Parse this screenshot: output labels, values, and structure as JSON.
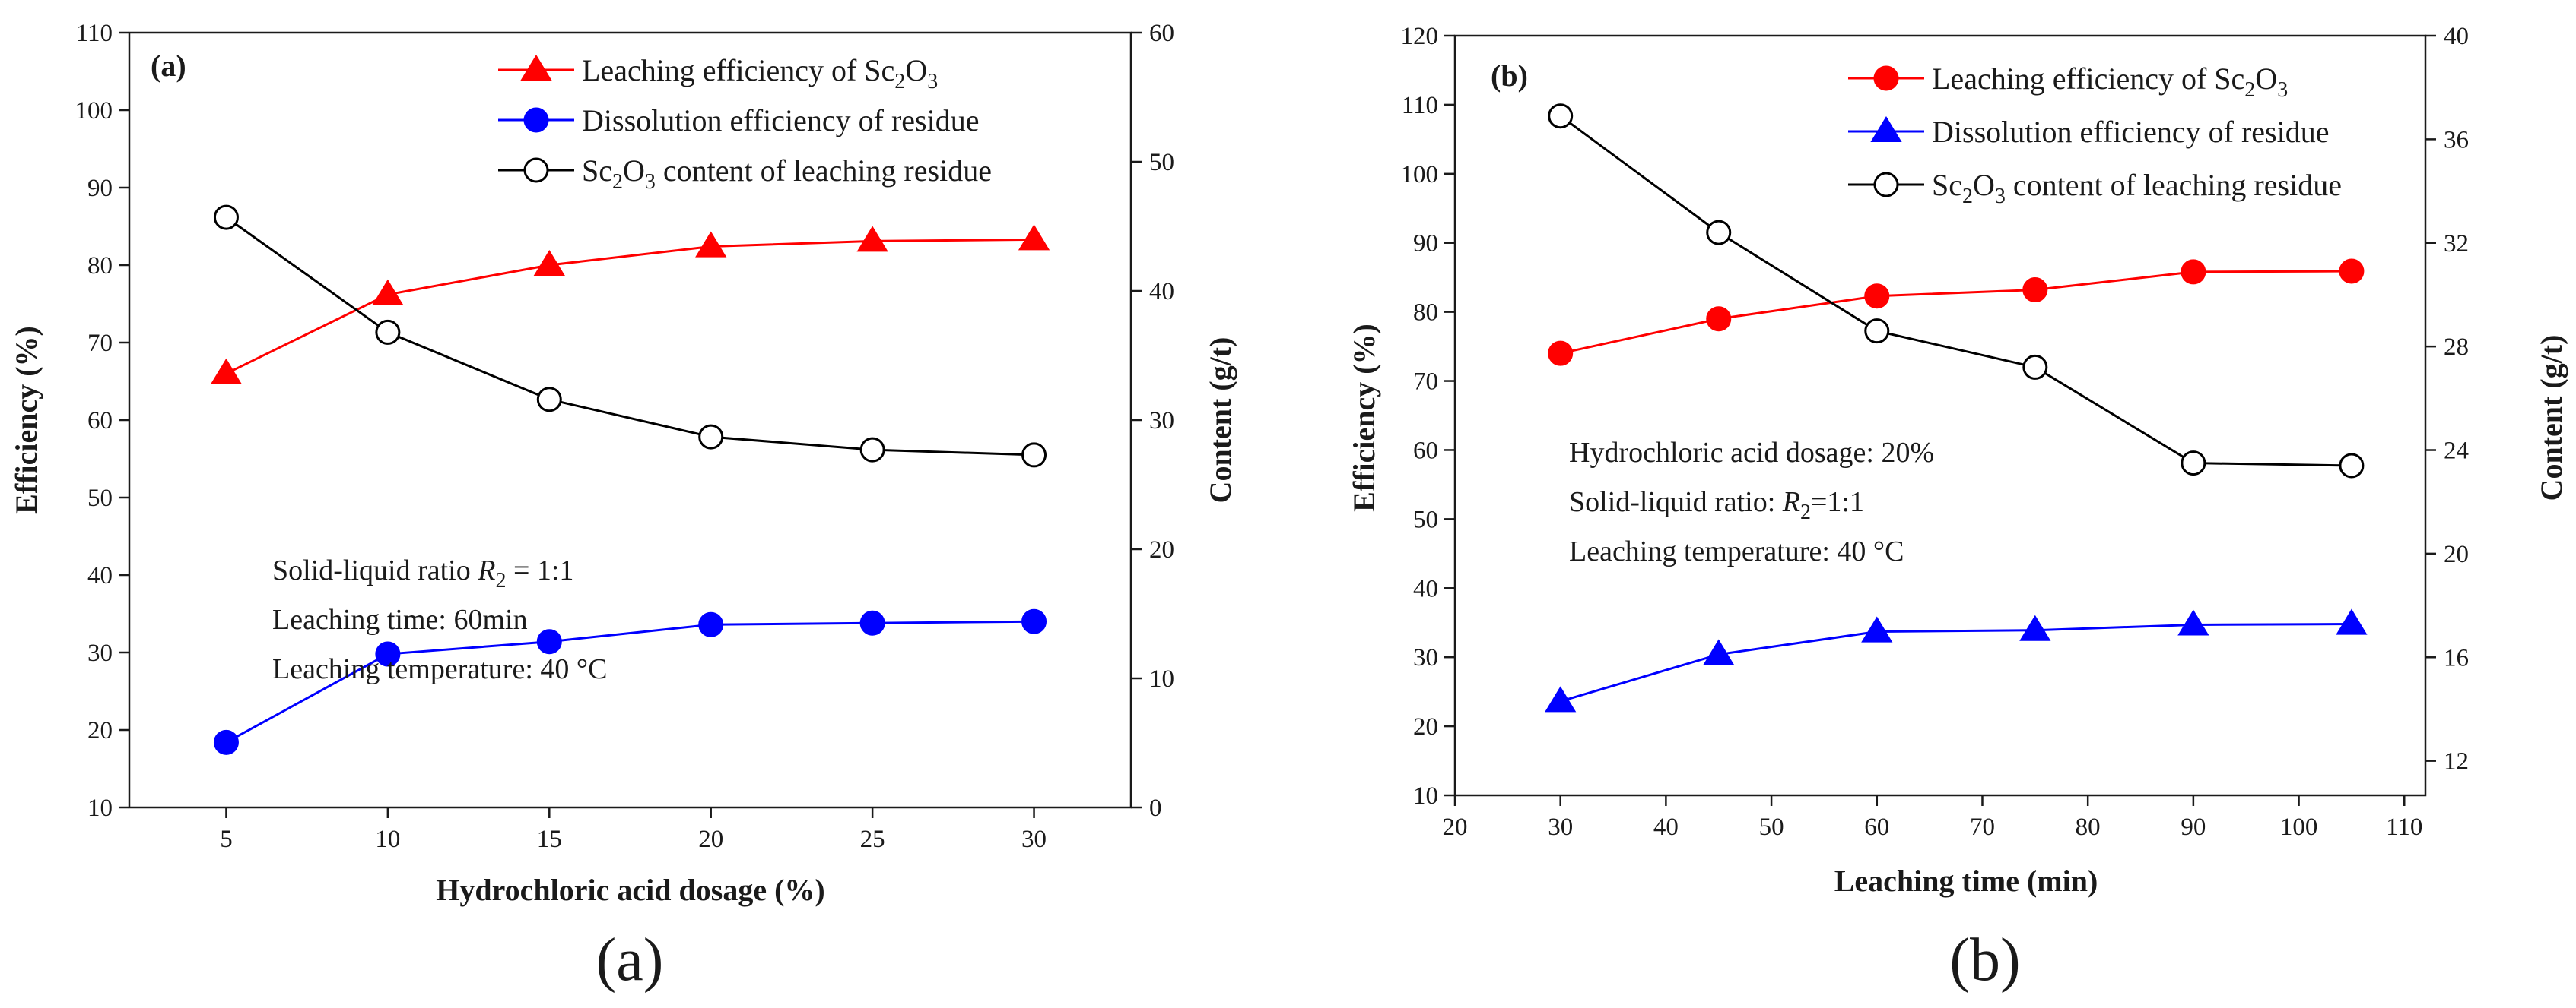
{
  "chart_data": [
    {
      "type": "line",
      "panel_label": "(a)",
      "caption": "(a)",
      "xlabel": "Hydrochloric acid dosage (%)",
      "ylabel": "Efficiency (%)",
      "y2label": "Content (g/t)",
      "xlim": [
        2,
        33
      ],
      "ylim": [
        10,
        110
      ],
      "y2lim": [
        0,
        60
      ],
      "xticks": [
        5,
        10,
        15,
        20,
        25,
        30
      ],
      "yticks": [
        10,
        20,
        30,
        40,
        50,
        60,
        70,
        80,
        90,
        100,
        110
      ],
      "y2ticks": [
        0,
        10,
        20,
        30,
        40,
        50,
        60
      ],
      "legend_position": "top-right",
      "series": [
        {
          "name": "Leaching efficiency of Sc2O3",
          "label_parts": [
            "Leaching efficiency of Sc",
            "2",
            "O",
            "3"
          ],
          "axis": "left",
          "color": "#ff0000",
          "marker": "triangle",
          "filled": true,
          "x": [
            5,
            10,
            15,
            20,
            25,
            30
          ],
          "values": [
            66,
            76.2,
            80,
            82.4,
            83.1,
            83.3
          ]
        },
        {
          "name": "Dissolution efficiency of residue",
          "label_parts": [
            "Dissolution efficiency of residue"
          ],
          "axis": "left",
          "color": "#0000ff",
          "marker": "circle",
          "filled": true,
          "x": [
            5,
            10,
            15,
            20,
            25,
            30
          ],
          "values": [
            18.4,
            29.8,
            31.4,
            33.6,
            33.8,
            34
          ]
        },
        {
          "name": "Sc2O3 content of leaching residue",
          "label_parts": [
            "Sc",
            "2",
            "O",
            "3",
            " content of leaching residue"
          ],
          "axis": "right",
          "color": "#000000",
          "marker": "circle",
          "filled": false,
          "x": [
            5,
            10,
            15,
            20,
            25,
            30
          ],
          "values": [
            45.7,
            36.8,
            31.6,
            28.7,
            27.7,
            27.3
          ]
        }
      ],
      "annotations": [
        {
          "parts": [
            {
              "t": "Solid-liquid ratio "
            },
            {
              "t": "R",
              "style": "italic"
            },
            {
              "t": "2",
              "style": "sub"
            },
            {
              "t": " = 1:1"
            }
          ]
        },
        {
          "parts": [
            {
              "t": "Leaching time: 60min"
            }
          ]
        },
        {
          "parts": [
            {
              "t": "Leaching temperature: 40 °C"
            }
          ]
        }
      ]
    },
    {
      "type": "line",
      "panel_label": "(b)",
      "caption": "(b)",
      "xlabel": "Leaching time (min)",
      "ylabel": "Efficiency (%)",
      "y2label": "Content (g/t)",
      "xlim": [
        20,
        112
      ],
      "ylim": [
        10,
        120
      ],
      "y2lim": [
        10.67,
        40
      ],
      "xticks": [
        20,
        30,
        40,
        50,
        60,
        70,
        80,
        90,
        100,
        110
      ],
      "yticks": [
        10,
        20,
        30,
        40,
        50,
        60,
        70,
        80,
        90,
        100,
        110,
        120
      ],
      "y2ticks": [
        12,
        16,
        20,
        24,
        28,
        32,
        36,
        40
      ],
      "legend_position": "top-right",
      "series": [
        {
          "name": "Leaching efficiency of Sc2O3",
          "label_parts": [
            "Leaching efficiency of Sc",
            "2",
            "O",
            "3"
          ],
          "axis": "left",
          "color": "#ff0000",
          "marker": "circle",
          "filled": true,
          "x": [
            30,
            45,
            60,
            75,
            90,
            105
          ],
          "values": [
            74,
            79,
            82.3,
            83.2,
            85.8,
            85.9
          ]
        },
        {
          "name": "Dissolution efficiency of residue",
          "label_parts": [
            "Dissolution efficiency of residue"
          ],
          "axis": "left",
          "color": "#0000ff",
          "marker": "triangle",
          "filled": true,
          "x": [
            30,
            45,
            60,
            75,
            90,
            105
          ],
          "values": [
            23.6,
            30.4,
            33.7,
            33.9,
            34.7,
            34.8
          ]
        },
        {
          "name": "Sc2O3 content of leaching residue",
          "label_parts": [
            "Sc",
            "2",
            "O",
            "3",
            " content of leaching residue"
          ],
          "axis": "right",
          "color": "#000000",
          "marker": "circle",
          "filled": false,
          "x": [
            30,
            45,
            60,
            75,
            90,
            105
          ],
          "values": [
            36.9,
            32.4,
            28.6,
            27.2,
            23.5,
            23.4
          ]
        }
      ],
      "annotations": [
        {
          "parts": [
            {
              "t": "Hydrochloric acid dosage: 20%"
            }
          ]
        },
        {
          "parts": [
            {
              "t": "Solid-liquid ratio: "
            },
            {
              "t": "R",
              "style": "italic"
            },
            {
              "t": "2",
              "style": "sub"
            },
            {
              "t": "=1:1"
            }
          ]
        },
        {
          "parts": [
            {
              "t": "Leaching temperature: 40 °C"
            }
          ]
        }
      ]
    }
  ]
}
